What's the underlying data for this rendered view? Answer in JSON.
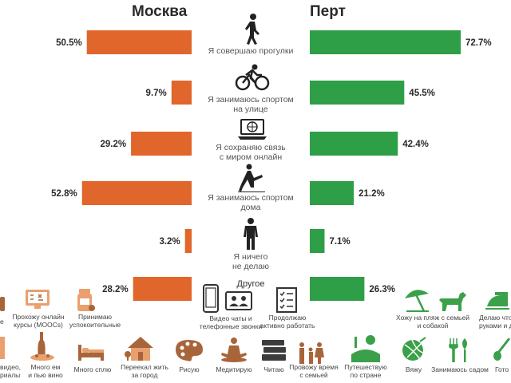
{
  "cities": {
    "left": "Москва",
    "right": "Перт"
  },
  "colors": {
    "moscow": "#e0662b",
    "perth": "#2e9e47",
    "icon": "#a8653a",
    "icon_green": "#3aa049",
    "icon_dark": "#3c3c3c"
  },
  "chart_data": {
    "type": "bar",
    "categories": [
      "Я совершаю прогулки",
      "Я занимаюсь спортом на улице",
      "Я сохраняю связь с миром онлайн",
      "Я занимаюсь спортом дома",
      "Я ничего не делаю",
      "Другое"
    ],
    "series": [
      {
        "name": "Москва",
        "values": [
          50.5,
          9.7,
          29.2,
          52.8,
          3.2,
          28.2
        ]
      },
      {
        "name": "Перт",
        "values": [
          72.7,
          45.5,
          42.4,
          21.2,
          7.1,
          26.3
        ]
      }
    ],
    "value_labels_left": [
      "50.5%",
      "9.7%",
      "29.2%",
      "52.8%",
      "3.2%",
      "28.2%"
    ],
    "value_labels_right": [
      "72.7%",
      "45.5%",
      "42.4%",
      "21.2%",
      "7.1%",
      "26.3%"
    ]
  },
  "labels": {
    "walk": "Я совершаю прогулки",
    "sport_out_1": "Я занимаюсь спортом",
    "sport_out_2": "на улице",
    "online_1": "Я сохраняю связь",
    "online_2": "с миром онлайн",
    "sport_home_1": "Я занимаюсь спортом",
    "sport_home_2": "дома",
    "nothing_1": "Я ничего",
    "nothing_2": "не делаю",
    "other": "Другое"
  },
  "captions": {
    "moocs_1": "Прохожу онлайн",
    "moocs_2": "курсы (MOOCs)",
    "sedatives_1": "Принимаю",
    "sedatives_2": "успокоительные",
    "video_1": "Видео чаты и",
    "video_2": "телефонные звонки",
    "work_1": "Продолжаю",
    "work_2": "активно работать",
    "beach_1": "Хожу на пляж с семьей",
    "beach_2": "и собакой",
    "hands_1": "Делаю что",
    "hands_2": "руками и д",
    "left_edge": "е",
    "series_1": "видео,",
    "series_2": "риалы",
    "eat_1": "Много ем",
    "eat_2": "и пью вино",
    "sleep": "Много сплю",
    "moved_1": "Переехал жить",
    "moved_2": "за город",
    "draw": "Рисую",
    "meditate": "Медитирую",
    "read": "Читаю",
    "family_1": "Провожу время",
    "family_2": "с семьей",
    "travel_1": "Путешествую",
    "travel_2": "по стране",
    "knit": "Вяжу",
    "garden": "Занимаюсь садом",
    "cook": "Гото"
  }
}
